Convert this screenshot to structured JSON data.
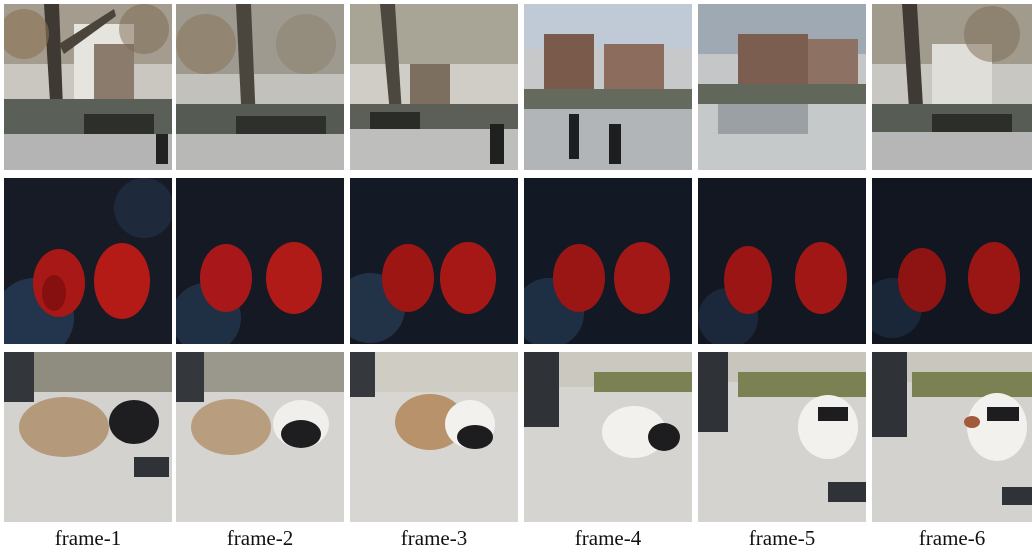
{
  "captions": [
    "frame-1",
    "frame-2",
    "frame-3",
    "frame-4",
    "frame-5",
    "frame-6"
  ],
  "rows": [
    {
      "scene": "street-trees-buildings",
      "description_colors": {
        "sky": "#dfe3e4",
        "tree": "#4e4a3f",
        "building": "#8a7665",
        "road": "#b9bcbd",
        "foliage": "#7d6a4f",
        "dark": "#2c2e2f"
      }
    },
    {
      "scene": "two-red-apples-dark-background",
      "description_colors": {
        "bg": "#121722",
        "bg_blue": "#2c4766",
        "apple": "#b11a16",
        "apple_dark": "#6e0c0c"
      }
    },
    {
      "scene": "dog-walking-on-pavement",
      "description_colors": {
        "ground": "#d6d4d0",
        "legs": "#2f3236",
        "grass": "#7b8153",
        "dog_white": "#f2f1ee",
        "dog_dark": "#1d1d20",
        "dog_tan": "#a88760"
      }
    }
  ]
}
